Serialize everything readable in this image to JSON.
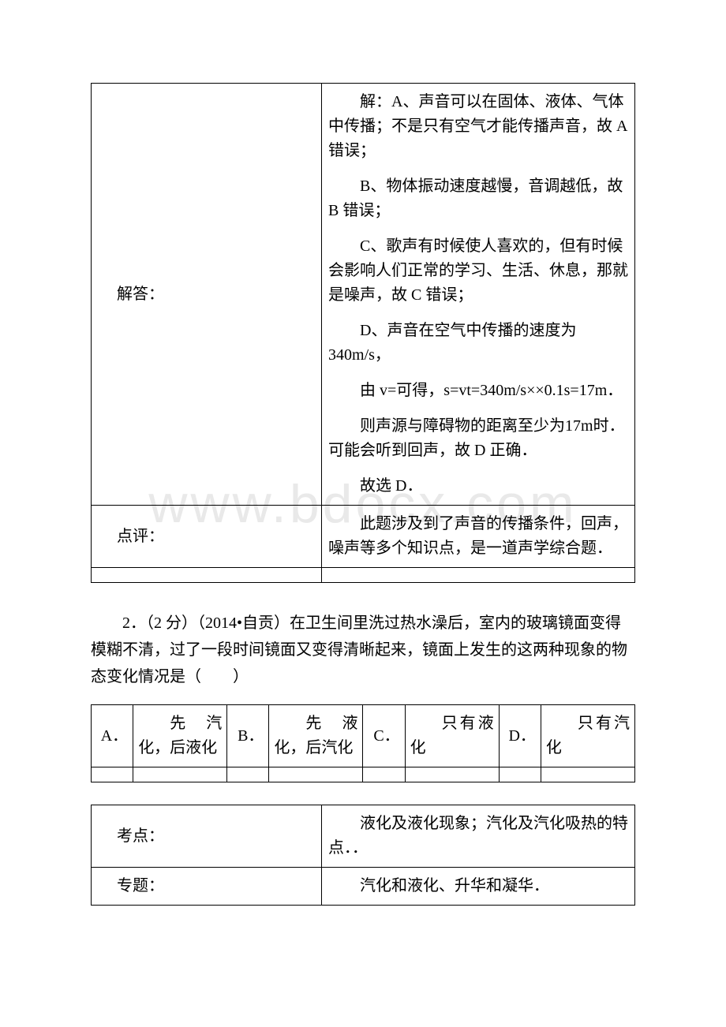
{
  "watermark": "www.bdocx.com",
  "table1": {
    "rows": [
      {
        "label": "解答：",
        "paragraphs": [
          "解：A、声音可以在固体、液体、气体中传播；不是只有空气才能传播声音，故 A 错误；",
          "B、物体振动速度越慢，音调越低，故 B 错误；",
          "C、歌声有时候使人喜欢的，但有时候会影响人们正常的学习、生活、休息，那就是噪声，故 C 错误；",
          "D、声音在空气中传播的速度为 340m/s，",
          "由 v=可得，s=vt=340m/s××0.1s=17m．",
          "则声源与障碍物的距离至少为17m时．可能会听到回声，故 D 正确．",
          "故选 D．"
        ]
      },
      {
        "label": "点评：",
        "paragraphs": [
          "此题涉及到了声音的传播条件，回声，噪声等多个知识点，是一道声学综合题．"
        ]
      }
    ]
  },
  "question2": {
    "text": "2．（2 分）（2014•自贡）在卫生间里洗过热水澡后，室内的玻璃镜面变得模糊不清，过了一段时间镜面又变得清晰起来，镜面上发生的这两种现象的物态变化情况是（　　）",
    "options": [
      {
        "mark": "A．",
        "text": "先汽化，后液化"
      },
      {
        "mark": "B．",
        "text": "先液化，后汽化"
      },
      {
        "mark": "C．",
        "text": "只有液化"
      },
      {
        "mark": "D．",
        "text": "只有汽化"
      }
    ]
  },
  "table3": {
    "rows": [
      {
        "label": "考点：",
        "value": "液化及液化现象；汽化及汽化吸热的特点．．"
      },
      {
        "label": "专题：",
        "value": "汽化和液化、升华和凝华．"
      }
    ]
  }
}
